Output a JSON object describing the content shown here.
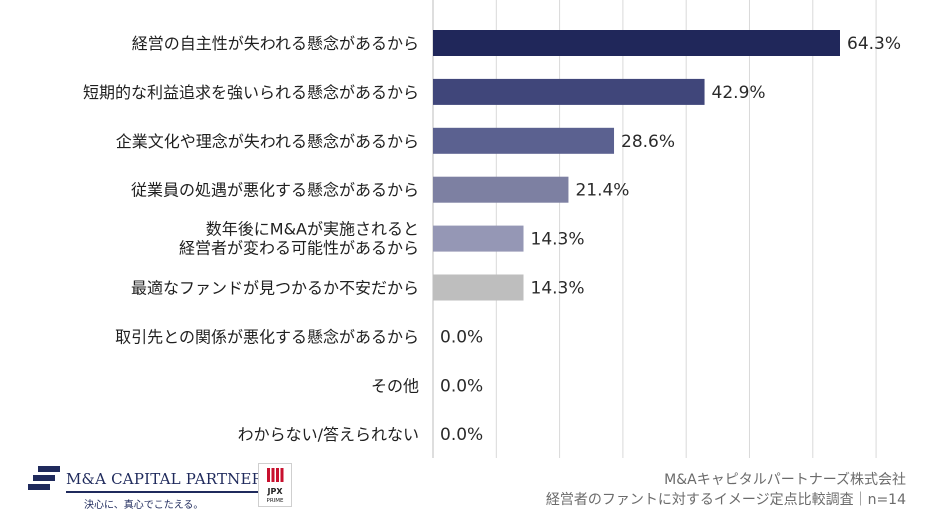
{
  "chart_data": {
    "type": "bar",
    "orientation": "horizontal",
    "categories": [
      [
        "経営の自主性が失われる懸念があるから"
      ],
      [
        "短期的な利益追求を強いられる懸念があるから"
      ],
      [
        "企業文化や理念が失われる懸念があるから"
      ],
      [
        "従業員の処遇が悪化する懸念があるから"
      ],
      [
        "数年後にM&Aが実施されると",
        "経営者が変わる可能性があるから"
      ],
      [
        "最適なファンドが見つかるか不安だから"
      ],
      [
        "取引先との関係が悪化する懸念があるから"
      ],
      [
        "その他"
      ],
      [
        "わからない/答えられない"
      ]
    ],
    "values": [
      64.3,
      42.9,
      28.6,
      21.4,
      14.3,
      14.3,
      0.0,
      0.0,
      0.0
    ],
    "value_labels": [
      "64.3%",
      "42.9%",
      "28.6%",
      "21.4%",
      "14.3%",
      "14.3%",
      "0.0%",
      "0.0%",
      "0.0%"
    ],
    "bar_colors": [
      "#20275a",
      "#40467a",
      "#5b6190",
      "#7d80a2",
      "#9597b5",
      "#bebebe",
      "#bebebe",
      "#bebebe",
      "#bebebe"
    ],
    "xlim": [
      0,
      70
    ],
    "grid": true,
    "gridline_color": "#d9d9d9"
  },
  "footer": {
    "company_logo_name": "M&A CAPITAL PARTNERS",
    "company_slogan": "決心に、真心でこたえる。",
    "badge_top": "JPX",
    "badge_bottom": "PRIME",
    "source_line1": "M&Aキャピタルパートナーズ株式会社",
    "source_line2": "経営者のファントに対するイメージ定点比較調査｜n=14"
  }
}
